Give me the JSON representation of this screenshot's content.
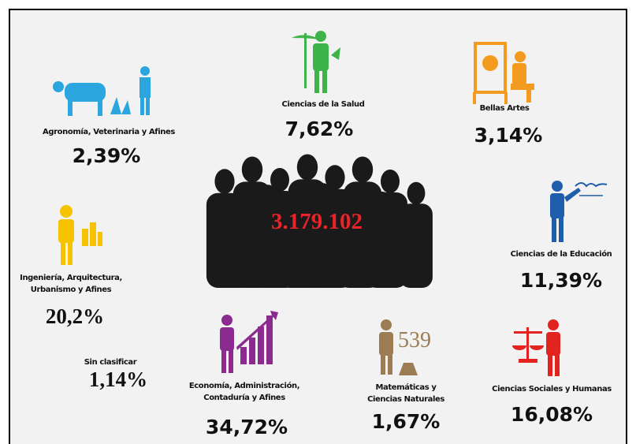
{
  "center": {
    "total": "3.179.102"
  },
  "areas": [
    {
      "lines": [
        "Agronomía, Veterinaria y Afines"
      ],
      "percent": "2,39%"
    },
    {
      "lines": [
        "Ciencias de la Salud"
      ],
      "percent": "7,62%"
    },
    {
      "lines": [
        "Bellas Artes"
      ],
      "percent": "3,14%"
    },
    {
      "lines": [
        "Ciencias de la Educación"
      ],
      "percent": "11,39%"
    },
    {
      "lines": [
        "Ingeniería, Arquitectura,",
        "Urbanismo y Afines"
      ],
      "percent": "20,2%"
    },
    {
      "lines": [
        "Sin clasificar"
      ],
      "percent": "1,14%"
    },
    {
      "lines": [
        "Economía, Administración,",
        "Contaduría y Afines"
      ],
      "percent": "34,72%"
    },
    {
      "lines": [
        "Matemáticas y",
        "Ciencias Naturales"
      ],
      "percent": "1,67%"
    },
    {
      "lines": [
        "Ciencias Sociales y Humanas"
      ],
      "percent": "16,08%"
    }
  ]
}
